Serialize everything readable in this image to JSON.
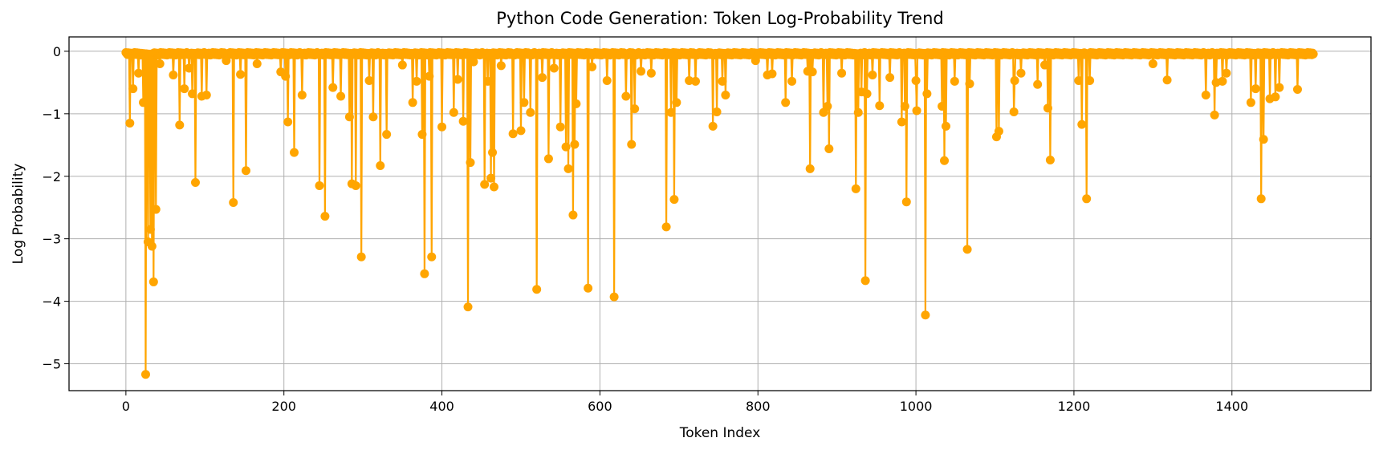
{
  "chart_data": {
    "type": "line",
    "title": "Python Code Generation: Token Log-Probability Trend",
    "xlabel": "Token Index",
    "ylabel": "Log Probability",
    "xlim": [
      -72,
      1576
    ],
    "ylim": [
      -5.43,
      0.23
    ],
    "x_ticks": [
      0,
      200,
      400,
      600,
      800,
      1000,
      1200,
      1400
    ],
    "y_ticks": [
      0,
      -1,
      -2,
      -3,
      -4,
      -5
    ],
    "x_tick_labels": [
      "0",
      "200",
      "400",
      "600",
      "800",
      "1000",
      "1200",
      "1400"
    ],
    "y_tick_labels": [
      "0",
      "−1",
      "−2",
      "−3",
      "−4",
      "−5"
    ],
    "grid": true,
    "n_tokens": 1504,
    "baseline_value": -0.02,
    "series": [
      {
        "color": "#FFA500",
        "marker": "circle",
        "dips": [
          [
            5,
            -1.15
          ],
          [
            9,
            -0.6
          ],
          [
            16,
            -0.35
          ],
          [
            22,
            -0.82
          ],
          [
            25,
            -5.17
          ],
          [
            28,
            -3.05
          ],
          [
            31,
            -2.85
          ],
          [
            33,
            -3.12
          ],
          [
            35,
            -3.69
          ],
          [
            38,
            -2.53
          ],
          [
            43,
            -0.2
          ],
          [
            60,
            -0.38
          ],
          [
            68,
            -1.18
          ],
          [
            74,
            -0.6
          ],
          [
            80,
            -0.27
          ],
          [
            84,
            -0.68
          ],
          [
            88,
            -2.1
          ],
          [
            96,
            -0.72
          ],
          [
            102,
            -0.7
          ],
          [
            127,
            -0.15
          ],
          [
            136,
            -2.42
          ],
          [
            145,
            -0.37
          ],
          [
            152,
            -1.91
          ],
          [
            166,
            -0.2
          ],
          [
            196,
            -0.33
          ],
          [
            202,
            -0.4
          ],
          [
            205,
            -1.13
          ],
          [
            213,
            -1.62
          ],
          [
            223,
            -0.7
          ],
          [
            245,
            -2.15
          ],
          [
            252,
            -2.64
          ],
          [
            262,
            -0.58
          ],
          [
            272,
            -0.72
          ],
          [
            283,
            -1.05
          ],
          [
            286,
            -2.12
          ],
          [
            291,
            -2.15
          ],
          [
            298,
            -3.29
          ],
          [
            308,
            -0.47
          ],
          [
            313,
            -1.05
          ],
          [
            322,
            -1.83
          ],
          [
            330,
            -1.33
          ],
          [
            350,
            -0.22
          ],
          [
            363,
            -0.82
          ],
          [
            368,
            -0.48
          ],
          [
            375,
            -1.33
          ],
          [
            378,
            -3.56
          ],
          [
            384,
            -0.4
          ],
          [
            387,
            -3.29
          ],
          [
            400,
            -1.21
          ],
          [
            415,
            -0.98
          ],
          [
            420,
            -0.45
          ],
          [
            427,
            -1.12
          ],
          [
            433,
            -4.09
          ],
          [
            436,
            -1.78
          ],
          [
            440,
            -0.17
          ],
          [
            454,
            -2.13
          ],
          [
            458,
            -0.48
          ],
          [
            462,
            -2.03
          ],
          [
            464,
            -1.62
          ],
          [
            466,
            -2.17
          ],
          [
            475,
            -0.23
          ],
          [
            490,
            -1.32
          ],
          [
            500,
            -1.27
          ],
          [
            504,
            -0.82
          ],
          [
            512,
            -0.98
          ],
          [
            520,
            -3.81
          ],
          [
            527,
            -0.42
          ],
          [
            535,
            -1.72
          ],
          [
            542,
            -0.27
          ],
          [
            550,
            -1.21
          ],
          [
            557,
            -1.53
          ],
          [
            560,
            -1.88
          ],
          [
            566,
            -2.62
          ],
          [
            568,
            -1.49
          ],
          [
            570,
            -0.84
          ],
          [
            585,
            -3.79
          ],
          [
            590,
            -0.25
          ],
          [
            609,
            -0.47
          ],
          [
            618,
            -3.93
          ],
          [
            633,
            -0.72
          ],
          [
            640,
            -1.49
          ],
          [
            644,
            -0.92
          ],
          [
            652,
            -0.32
          ],
          [
            665,
            -0.35
          ],
          [
            684,
            -2.81
          ],
          [
            690,
            -0.98
          ],
          [
            694,
            -2.37
          ],
          [
            697,
            -0.82
          ],
          [
            713,
            -0.47
          ],
          [
            721,
            -0.48
          ],
          [
            743,
            -1.2
          ],
          [
            748,
            -0.97
          ],
          [
            755,
            -0.48
          ],
          [
            759,
            -0.7
          ],
          [
            797,
            -0.15
          ],
          [
            812,
            -0.38
          ],
          [
            818,
            -0.36
          ],
          [
            835,
            -0.82
          ],
          [
            843,
            -0.48
          ],
          [
            863,
            -0.32
          ],
          [
            866,
            -1.88
          ],
          [
            869,
            -0.33
          ],
          [
            883,
            -0.98
          ],
          [
            888,
            -0.88
          ],
          [
            890,
            -1.56
          ],
          [
            906,
            -0.35
          ],
          [
            924,
            -2.2
          ],
          [
            927,
            -0.98
          ],
          [
            931,
            -0.65
          ],
          [
            936,
            -3.67
          ],
          [
            938,
            -0.68
          ],
          [
            945,
            -0.38
          ],
          [
            954,
            -0.87
          ],
          [
            967,
            -0.42
          ],
          [
            982,
            -1.13
          ],
          [
            986,
            -0.88
          ],
          [
            988,
            -2.41
          ],
          [
            1000,
            -0.47
          ],
          [
            1001,
            -0.95
          ],
          [
            1012,
            -4.22
          ],
          [
            1014,
            -0.68
          ],
          [
            1033,
            -0.88
          ],
          [
            1036,
            -1.75
          ],
          [
            1038,
            -1.2
          ],
          [
            1049,
            -0.48
          ],
          [
            1065,
            -3.17
          ],
          [
            1068,
            -0.52
          ],
          [
            1102,
            -1.37
          ],
          [
            1105,
            -1.28
          ],
          [
            1124,
            -0.97
          ],
          [
            1125,
            -0.47
          ],
          [
            1133,
            -0.35
          ],
          [
            1154,
            -0.53
          ],
          [
            1163,
            -0.22
          ],
          [
            1167,
            -0.91
          ],
          [
            1170,
            -1.74
          ],
          [
            1206,
            -0.47
          ],
          [
            1210,
            -1.17
          ],
          [
            1216,
            -2.36
          ],
          [
            1220,
            -0.47
          ],
          [
            1300,
            -0.2
          ],
          [
            1318,
            -0.46
          ],
          [
            1367,
            -0.7
          ],
          [
            1378,
            -1.02
          ],
          [
            1380,
            -0.5
          ],
          [
            1388,
            -0.48
          ],
          [
            1393,
            -0.35
          ],
          [
            1424,
            -0.82
          ],
          [
            1430,
            -0.6
          ],
          [
            1437,
            -2.36
          ],
          [
            1440,
            -1.41
          ],
          [
            1448,
            -0.76
          ],
          [
            1455,
            -0.73
          ],
          [
            1460,
            -0.58
          ],
          [
            1483,
            -0.61
          ],
          [
            1497,
            -0.05
          ]
        ]
      }
    ]
  }
}
